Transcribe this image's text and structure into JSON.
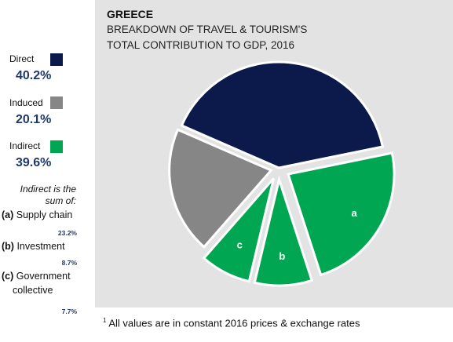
{
  "header": {
    "country": "GREECE",
    "title_line1": "BREAKDOWN OF TRAVEL & TOURISM'S",
    "title_line2": "TOTAL CONTRIBUTION TO GDP, 2016"
  },
  "legend": [
    {
      "label": "Direct",
      "value": "40.2%",
      "color": "#0c1a4b"
    },
    {
      "label": "Induced",
      "value": "20.1%",
      "color": "#868686"
    },
    {
      "label": "Indirect",
      "value": "39.6%",
      "color": "#00a651"
    }
  ],
  "indirect_note": {
    "heading_line1": "Indirect is the",
    "heading_line2": "sum of:",
    "items": [
      {
        "letter": "(a)",
        "label": "Supply chain",
        "value": "23.2%"
      },
      {
        "letter": "(b)",
        "label": "Investment",
        "value": "8.7%"
      },
      {
        "letter": "(c)",
        "label": "Government",
        "label2": "collective",
        "value": "7.7%"
      }
    ]
  },
  "footnote": {
    "marker": "1",
    "text": "All values are in constant 2016 prices & exchange rates"
  },
  "chart_data": {
    "type": "pie",
    "title": "BREAKDOWN OF TRAVEL & TOURISM'S TOTAL CONTRIBUTION TO GDP, 2016",
    "slices": [
      {
        "label": "Direct",
        "value": 40.2,
        "color": "#0c1a4b"
      },
      {
        "label": "a",
        "value": 23.2,
        "color": "#00a651"
      },
      {
        "label": "b",
        "value": 8.7,
        "color": "#00a651"
      },
      {
        "label": "c",
        "value": 7.7,
        "color": "#00a651"
      },
      {
        "label": "Induced",
        "value": 20.1,
        "color": "#868686"
      }
    ]
  }
}
